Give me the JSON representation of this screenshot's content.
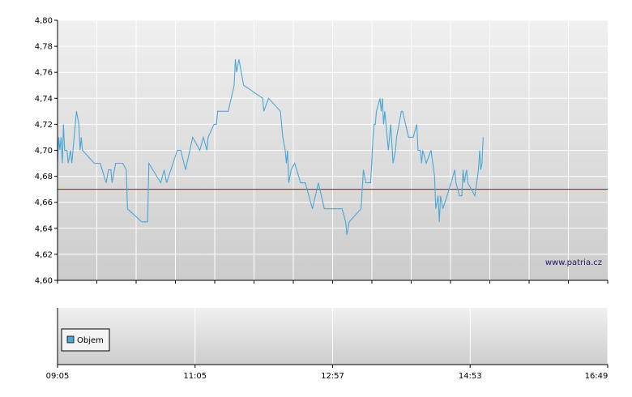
{
  "chart_data": [
    {
      "type": "line",
      "title": "",
      "xlabel": "",
      "ylabel": "",
      "ylim": [
        4.6,
        4.8
      ],
      "y_ticks": [
        "4,80",
        "4,78",
        "4,76",
        "4,74",
        "4,72",
        "4,70",
        "4,68",
        "4,66",
        "4,64",
        "4,62",
        "4,60"
      ],
      "x_range": [
        "09:05",
        "16:49"
      ],
      "reference_line": {
        "value": 4.67,
        "color": "#cc0000"
      },
      "grid": true,
      "watermark": "www.patria.cz",
      "series": [
        {
          "color": "#4da6d6",
          "points": [
            [
              "09:05",
              4.69
            ],
            [
              "09:06",
              4.71
            ],
            [
              "09:07",
              4.7
            ],
            [
              "09:08",
              4.71
            ],
            [
              "09:09",
              4.69
            ],
            [
              "09:10",
              4.72
            ],
            [
              "09:11",
              4.7
            ],
            [
              "09:13",
              4.7
            ],
            [
              "09:14",
              4.69
            ],
            [
              "09:16",
              4.7
            ],
            [
              "09:17",
              4.69
            ],
            [
              "09:19",
              4.71
            ],
            [
              "09:21",
              4.73
            ],
            [
              "09:23",
              4.72
            ],
            [
              "09:24",
              4.7
            ],
            [
              "09:25",
              4.71
            ],
            [
              "09:26",
              4.7
            ],
            [
              "09:36",
              4.69
            ],
            [
              "09:41",
              4.69
            ],
            [
              "09:46",
              4.675
            ],
            [
              "09:48",
              4.685
            ],
            [
              "09:50",
              4.685
            ],
            [
              "09:51",
              4.675
            ],
            [
              "09:54",
              4.69
            ],
            [
              "10:00",
              4.69
            ],
            [
              "10:03",
              4.685
            ],
            [
              "10:04",
              4.655
            ],
            [
              "10:16",
              4.645
            ],
            [
              "10:21",
              4.645
            ],
            [
              "10:22",
              4.69
            ],
            [
              "10:32",
              4.675
            ],
            [
              "10:35",
              4.685
            ],
            [
              "10:37",
              4.675
            ],
            [
              "10:46",
              4.7
            ],
            [
              "10:49",
              4.7
            ],
            [
              "10:53",
              4.685
            ],
            [
              "10:59",
              4.71
            ],
            [
              "11:05",
              4.7
            ],
            [
              "11:08",
              4.71
            ],
            [
              "11:11",
              4.7
            ],
            [
              "11:12",
              4.71
            ],
            [
              "11:17",
              4.72
            ],
            [
              "11:19",
              4.72
            ],
            [
              "11:20",
              4.73
            ],
            [
              "11:29",
              4.73
            ],
            [
              "11:34",
              4.75
            ],
            [
              "11:35",
              4.77
            ],
            [
              "11:36",
              4.76
            ],
            [
              "11:38",
              4.77
            ],
            [
              "11:42",
              4.75
            ],
            [
              "11:58",
              4.74
            ],
            [
              "11:59",
              4.73
            ],
            [
              "12:03",
              4.74
            ],
            [
              "12:13",
              4.73
            ],
            [
              "12:15",
              4.71
            ],
            [
              "12:17",
              4.7
            ],
            [
              "12:18",
              4.69
            ],
            [
              "12:19",
              4.7
            ],
            [
              "12:20",
              4.675
            ],
            [
              "12:22",
              4.685
            ],
            [
              "12:25",
              4.69
            ],
            [
              "12:30",
              4.675
            ],
            [
              "12:34",
              4.675
            ],
            [
              "12:40",
              4.655
            ],
            [
              "12:45",
              4.675
            ],
            [
              "12:50",
              4.655
            ],
            [
              "13:05",
              4.655
            ],
            [
              "13:08",
              4.645
            ],
            [
              "13:09",
              4.635
            ],
            [
              "13:11",
              4.645
            ],
            [
              "13:21",
              4.655
            ],
            [
              "13:23",
              4.685
            ],
            [
              "13:25",
              4.675
            ],
            [
              "13:29",
              4.675
            ],
            [
              "13:30",
              4.69
            ],
            [
              "13:31",
              4.71
            ],
            [
              "13:32",
              4.72
            ],
            [
              "13:33",
              4.72
            ],
            [
              "13:34",
              4.73
            ],
            [
              "13:37",
              4.74
            ],
            [
              "13:38",
              4.73
            ],
            [
              "13:39",
              4.74
            ],
            [
              "13:40",
              4.72
            ],
            [
              "13:41",
              4.73
            ],
            [
              "13:42",
              4.72
            ],
            [
              "13:44",
              4.7
            ],
            [
              "13:46",
              4.72
            ],
            [
              "13:48",
              4.69
            ],
            [
              "13:50",
              4.7
            ],
            [
              "13:51",
              4.71
            ],
            [
              "13:55",
              4.73
            ],
            [
              "13:56",
              4.73
            ],
            [
              "14:01",
              4.71
            ],
            [
              "14:05",
              4.71
            ],
            [
              "14:08",
              4.72
            ],
            [
              "14:09",
              4.7
            ],
            [
              "14:11",
              4.7
            ],
            [
              "14:12",
              4.69
            ],
            [
              "14:13",
              4.7
            ],
            [
              "14:16",
              4.69
            ],
            [
              "14:20",
              4.7
            ],
            [
              "14:23",
              4.68
            ],
            [
              "14:24",
              4.655
            ],
            [
              "14:25",
              4.66
            ],
            [
              "14:26",
              4.665
            ],
            [
              "14:27",
              4.645
            ],
            [
              "14:28",
              4.665
            ],
            [
              "14:30",
              4.655
            ],
            [
              "14:37",
              4.675
            ],
            [
              "14:40",
              4.685
            ],
            [
              "14:41",
              4.675
            ],
            [
              "14:44",
              4.665
            ],
            [
              "14:46",
              4.665
            ],
            [
              "14:47",
              4.685
            ],
            [
              "14:48",
              4.675
            ],
            [
              "14:50",
              4.685
            ],
            [
              "14:51",
              4.675
            ],
            [
              "14:57",
              4.665
            ],
            [
              "15:00",
              4.685
            ],
            [
              "15:01",
              4.7
            ],
            [
              "15:02",
              4.685
            ],
            [
              "15:03",
              4.69
            ],
            [
              "15:04",
              4.71
            ]
          ]
        }
      ]
    },
    {
      "type": "bar",
      "title": "",
      "x_ticks": [
        "09:05",
        "11:05",
        "12:57",
        "14:53",
        "16:49"
      ],
      "legend": [
        "Objem"
      ],
      "legend_placement": "left",
      "series_color": "#4da6d6",
      "grid": true
    }
  ]
}
